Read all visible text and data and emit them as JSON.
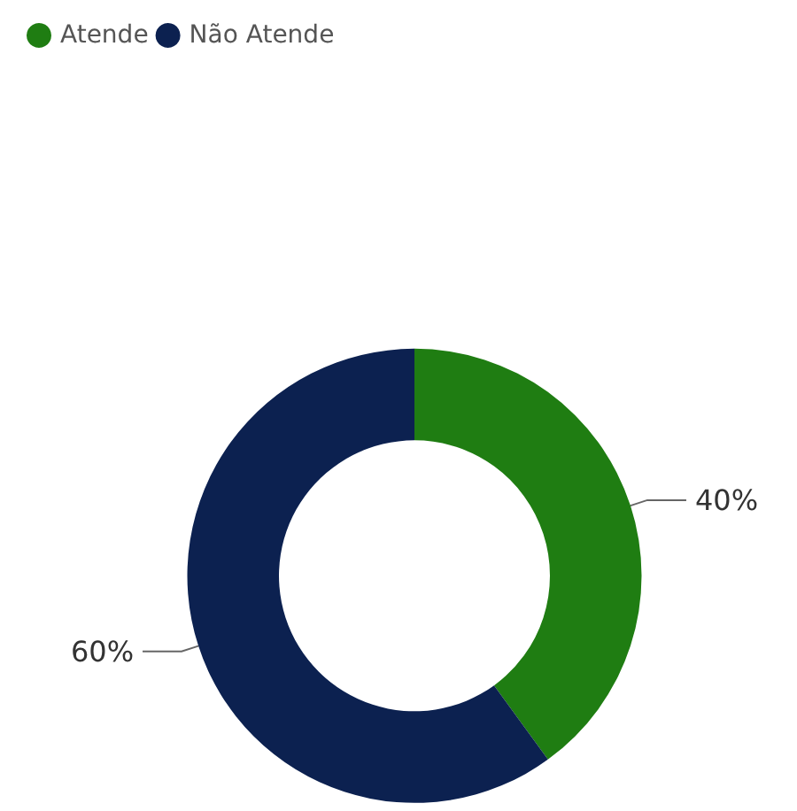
{
  "chart_data": {
    "type": "donut",
    "categories": [
      "Atende",
      "Não Atende"
    ],
    "values": [
      40,
      60
    ],
    "colors": [
      "#1f7d12",
      "#0c2150"
    ],
    "value_labels": [
      "40%",
      "60%"
    ],
    "legend": "top left"
  }
}
